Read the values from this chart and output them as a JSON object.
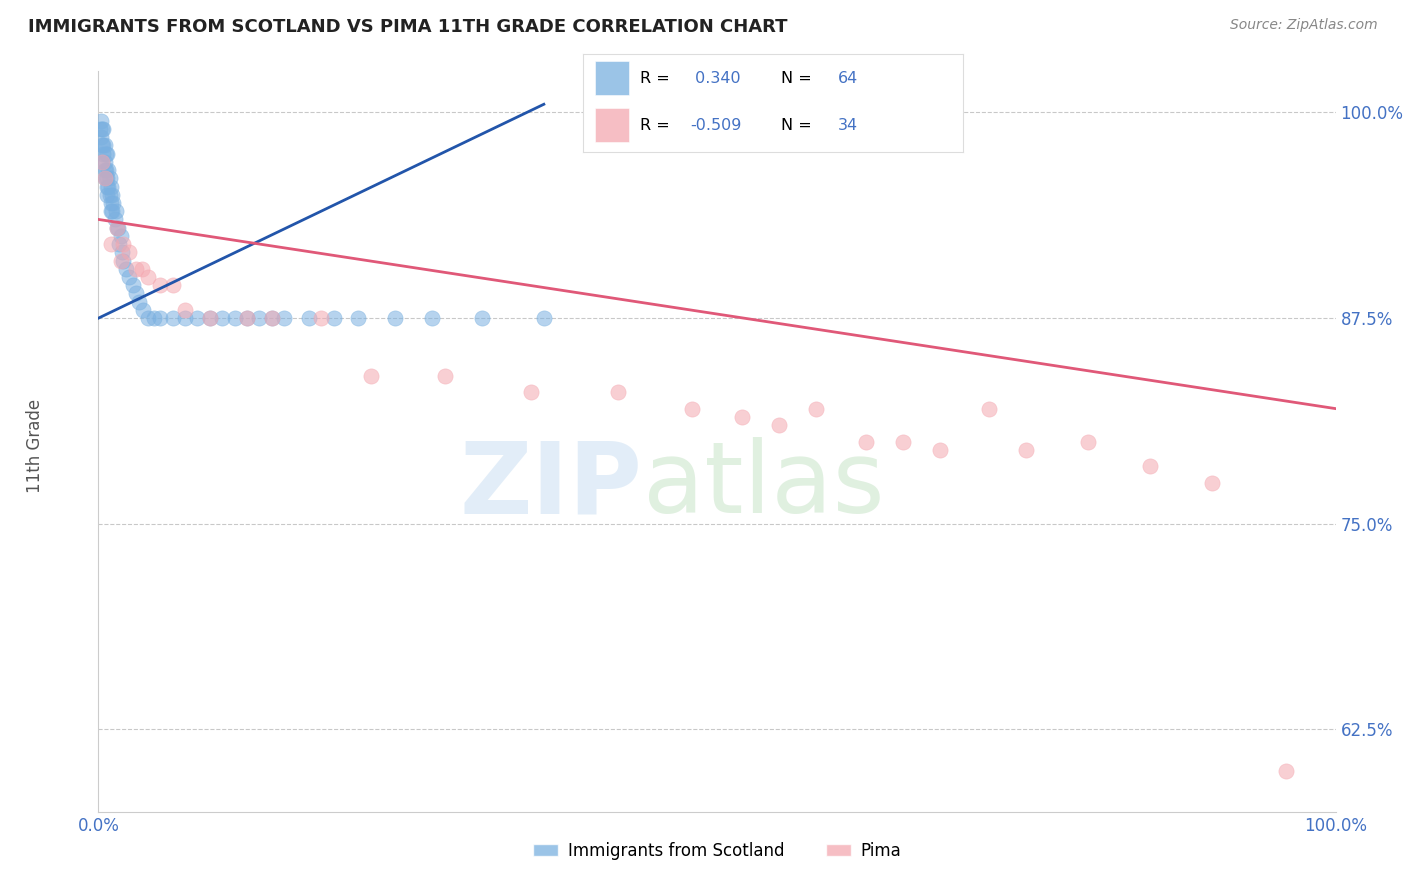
{
  "title": "IMMIGRANTS FROM SCOTLAND VS PIMA 11TH GRADE CORRELATION CHART",
  "source_text": "Source: ZipAtlas.com",
  "ylabel": "11th Grade",
  "legend1_label": "Immigrants from Scotland",
  "legend2_label": "Pima",
  "R1": 0.34,
  "N1": 64,
  "R2": -0.509,
  "N2": 34,
  "blue_color": "#7ab0e0",
  "pink_color": "#f4a8b0",
  "blue_line_color": "#2255aa",
  "pink_line_color": "#e05878",
  "title_color": "#222222",
  "axis_label_color": "#555555",
  "tick_color": "#4472c4",
  "grid_color": "#bbbbbb",
  "background_color": "#ffffff",
  "scatter_alpha": 0.55,
  "scatter_size": 120,
  "blue_scatter_x": [
    0.001,
    0.002,
    0.002,
    0.003,
    0.003,
    0.003,
    0.004,
    0.004,
    0.004,
    0.005,
    0.005,
    0.005,
    0.005,
    0.006,
    0.006,
    0.006,
    0.007,
    0.007,
    0.007,
    0.007,
    0.008,
    0.008,
    0.009,
    0.009,
    0.01,
    0.01,
    0.01,
    0.011,
    0.011,
    0.012,
    0.013,
    0.014,
    0.015,
    0.016,
    0.017,
    0.018,
    0.019,
    0.02,
    0.022,
    0.025,
    0.028,
    0.03,
    0.033,
    0.036,
    0.04,
    0.045,
    0.05,
    0.06,
    0.07,
    0.08,
    0.09,
    0.1,
    0.11,
    0.12,
    0.13,
    0.14,
    0.15,
    0.17,
    0.19,
    0.21,
    0.24,
    0.27,
    0.31,
    0.36
  ],
  "blue_scatter_y": [
    0.99,
    0.995,
    0.985,
    0.99,
    0.98,
    0.97,
    0.99,
    0.98,
    0.975,
    0.98,
    0.97,
    0.965,
    0.96,
    0.975,
    0.965,
    0.96,
    0.975,
    0.96,
    0.955,
    0.95,
    0.965,
    0.955,
    0.96,
    0.95,
    0.955,
    0.945,
    0.94,
    0.95,
    0.94,
    0.945,
    0.935,
    0.94,
    0.93,
    0.93,
    0.92,
    0.925,
    0.915,
    0.91,
    0.905,
    0.9,
    0.895,
    0.89,
    0.885,
    0.88,
    0.875,
    0.875,
    0.875,
    0.875,
    0.875,
    0.875,
    0.875,
    0.875,
    0.875,
    0.875,
    0.875,
    0.875,
    0.875,
    0.875,
    0.875,
    0.875,
    0.875,
    0.875,
    0.875,
    0.875
  ],
  "pink_scatter_x": [
    0.003,
    0.005,
    0.01,
    0.015,
    0.018,
    0.02,
    0.025,
    0.03,
    0.035,
    0.04,
    0.05,
    0.06,
    0.07,
    0.09,
    0.12,
    0.14,
    0.18,
    0.22,
    0.28,
    0.35,
    0.42,
    0.48,
    0.52,
    0.55,
    0.58,
    0.62,
    0.65,
    0.68,
    0.72,
    0.75,
    0.8,
    0.85,
    0.9,
    0.96
  ],
  "pink_scatter_y": [
    0.97,
    0.96,
    0.92,
    0.93,
    0.91,
    0.92,
    0.915,
    0.905,
    0.905,
    0.9,
    0.895,
    0.895,
    0.88,
    0.875,
    0.875,
    0.875,
    0.875,
    0.84,
    0.84,
    0.83,
    0.83,
    0.82,
    0.815,
    0.81,
    0.82,
    0.8,
    0.8,
    0.795,
    0.82,
    0.795,
    0.8,
    0.785,
    0.775,
    0.6
  ],
  "blue_trendline_x": [
    0.0,
    0.36
  ],
  "blue_trendline_y": [
    0.875,
    1.005
  ],
  "pink_trendline_x": [
    0.0,
    1.0
  ],
  "pink_trendline_y": [
    0.935,
    0.82
  ],
  "xlim": [
    0.0,
    1.0
  ],
  "ylim": [
    0.575,
    1.025
  ],
  "y_ticks": [
    0.625,
    0.75,
    0.875,
    1.0
  ],
  "y_tick_labels": [
    "62.5%",
    "75.0%",
    "87.5%",
    "100.0%"
  ],
  "x_ticks": [
    0.0,
    1.0
  ],
  "x_tick_labels": [
    "0.0%",
    "100.0%"
  ]
}
